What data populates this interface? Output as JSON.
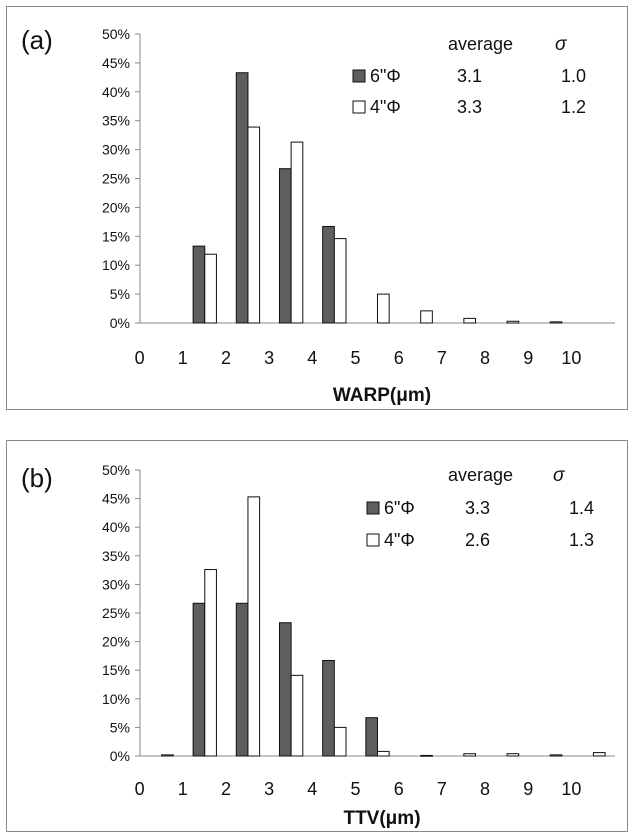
{
  "colors": {
    "series_6": "#5e5e5e",
    "series_4": "#ffffff",
    "bar_stroke": "#111111",
    "axis": "#8a8a8a",
    "frame": "#8a8a8a"
  },
  "chart_data": [
    {
      "type": "bar",
      "panel_label": "(a)",
      "xlabel": "WARP(μm)",
      "ylabel": "",
      "categories": [
        "0",
        "1",
        "2",
        "3",
        "4",
        "5",
        "6",
        "7",
        "8",
        "9",
        "10"
      ],
      "ylim": [
        0,
        0.5
      ],
      "yticks": [
        "0%",
        "5%",
        "10%",
        "15%",
        "20%",
        "25%",
        "30%",
        "35%",
        "40%",
        "45%",
        "50%"
      ],
      "grid": false,
      "legend": {
        "header_avg": "average",
        "header_sigma": "σ",
        "entries": [
          {
            "name": "6\"Φ",
            "average": "3.1",
            "sigma": "1.0"
          },
          {
            "name": "4\"Φ",
            "average": "3.3",
            "sigma": "1.2"
          }
        ]
      },
      "series": [
        {
          "name": "6\"Φ",
          "values": [
            0,
            0.133,
            0.433,
            0.267,
            0.167,
            0,
            0,
            0,
            0,
            0,
            0
          ]
        },
        {
          "name": "4\"Φ",
          "values": [
            0,
            0.119,
            0.339,
            0.313,
            0.146,
            0.05,
            0.021,
            0.008,
            0.003,
            0.002,
            0
          ]
        }
      ]
    },
    {
      "type": "bar",
      "panel_label": "(b)",
      "xlabel": "TTV(μm)",
      "ylabel": "",
      "categories": [
        "0",
        "1",
        "2",
        "3",
        "4",
        "5",
        "6",
        "7",
        "8",
        "9",
        "10"
      ],
      "ylim": [
        0,
        0.5
      ],
      "yticks": [
        "0%",
        "5%",
        "10%",
        "15%",
        "20%",
        "25%",
        "30%",
        "35%",
        "40%",
        "45%",
        "50%"
      ],
      "grid": false,
      "legend": {
        "header_avg": "average",
        "header_sigma": "σ",
        "entries": [
          {
            "name": "6\"Φ",
            "average": "3.3",
            "sigma": "1.4"
          },
          {
            "name": "4\"Φ",
            "average": "2.6",
            "sigma": "1.3"
          }
        ]
      },
      "series": [
        {
          "name": "6\"Φ",
          "values": [
            0,
            0.267,
            0.267,
            0.233,
            0.167,
            0.067,
            0,
            0,
            0,
            0,
            0
          ]
        },
        {
          "name": "4\"Φ",
          "values": [
            0.002,
            0.326,
            0.453,
            0.141,
            0.05,
            0.008,
            0.001,
            0.004,
            0.004,
            0.002,
            0.006
          ]
        }
      ]
    }
  ]
}
